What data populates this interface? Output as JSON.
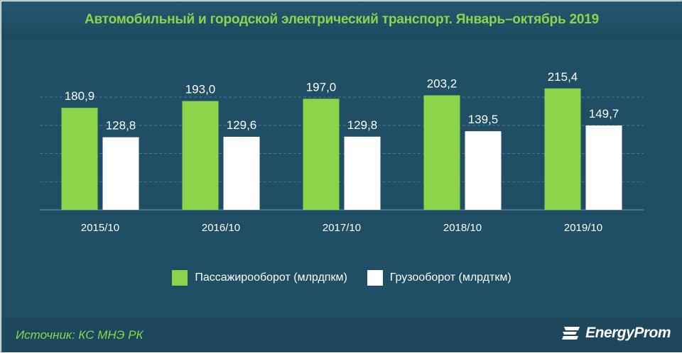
{
  "header": {
    "title": "Автомобильный и городской электрический транспорт. Январь–октябрь 2019"
  },
  "legend": {
    "passenger_label": "Пассажирооборот (млрдпкм)",
    "cargo_label": "Грузооборот (млрдткм)"
  },
  "footer": {
    "source": "Источник: КС МНЭ РК",
    "logo": "EnergyProm"
  },
  "colors": {
    "passenger": "#8ed44a",
    "cargo": "#ffffff",
    "background": "#1f4e65",
    "grid": "#3e7d99",
    "accent": "#8ed44a"
  },
  "chart_data": {
    "type": "bar",
    "title": "Автомобильный и городской электрический транспорт. Январь–октябрь 2019",
    "categories": [
      "2015/10",
      "2016/10",
      "2017/10",
      "2018/10",
      "2019/10"
    ],
    "series": [
      {
        "name": "Пассажирооборот (млрдпкм)",
        "values": [
          180.9,
          193.0,
          197.0,
          203.2,
          215.4
        ],
        "labels": [
          "180,9",
          "193,0",
          "197,0",
          "203,2",
          "215,4"
        ]
      },
      {
        "name": "Грузооборот (млрдткм)",
        "values": [
          128.8,
          129.6,
          129.8,
          139.5,
          149.7
        ],
        "labels": [
          "128,8",
          "129,6",
          "129,8",
          "139,5",
          "149,7"
        ]
      }
    ],
    "ylim": [
      0,
      250
    ],
    "grid": true,
    "legend_position": "bottom"
  }
}
